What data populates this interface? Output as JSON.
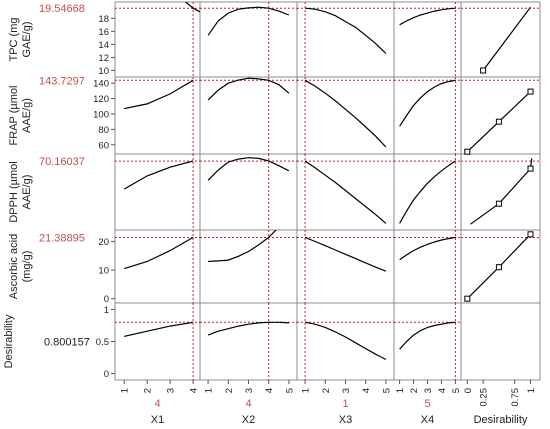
{
  "colors": {
    "curve": "#000000",
    "ref": "#c0272d",
    "frame": "#8c8c8c",
    "value_text": "#c0504d"
  },
  "chart_data": {
    "type": "line",
    "title": "",
    "rows": [
      {
        "name": "TPC (mg GAE/g)",
        "label_lines": [
          "TPC (mg",
          "GAE/g)"
        ],
        "current": "19.54668",
        "current_value": 19.54668,
        "ylim": [
          9,
          20.5
        ],
        "yticks": [
          "10",
          "12",
          "14",
          "16",
          "18"
        ],
        "ytick_values": [
          10,
          12,
          14,
          16,
          18
        ]
      },
      {
        "name": "FRAP (µmol AAE/g)",
        "label_lines": [
          "FRAP (µmol",
          "AAE/g)"
        ],
        "current": "143.7297",
        "current_value": 143.7297,
        "ylim": [
          48,
          148
        ],
        "yticks": [
          "60",
          "80",
          "100",
          "120",
          "140"
        ],
        "ytick_values": [
          60,
          80,
          100,
          120,
          140
        ]
      },
      {
        "name": "DPPH (µmol AAE/g)",
        "label_lines": [
          "DPPH (µmol",
          "AAE/g)"
        ],
        "current": "70.16037",
        "current_value": 70.16037,
        "ylim": [
          23,
          75
        ],
        "yticks": [],
        "ytick_values": []
      },
      {
        "name": "Ascorbic acid (mg/g)",
        "label_lines": [
          "Ascorbic acid",
          "(mg/g)"
        ],
        "current": "21.38895",
        "current_value": 21.38895,
        "ylim": [
          -1.5,
          24
        ],
        "yticks": [
          "0",
          "10",
          "20"
        ],
        "ytick_values": [
          0,
          10,
          20
        ]
      },
      {
        "name": "Desirability",
        "label_lines": [
          "Desirability"
        ],
        "current": "0.800157",
        "current_value": 0.800157,
        "ylim": [
          -0.1,
          1.1
        ],
        "yticks": [
          "0",
          "0.5",
          "1"
        ],
        "ytick_values": [
          0,
          0.5,
          1
        ]
      }
    ],
    "factors": [
      {
        "name": "X1",
        "current": "4",
        "current_value": 4,
        "xlim": [
          0.6,
          4.3
        ],
        "xticks": [
          "1",
          "2",
          "3",
          "4"
        ],
        "xtick_values": [
          1,
          2,
          3,
          4
        ]
      },
      {
        "name": "X2",
        "current": "4",
        "current_value": 4,
        "xlim": [
          0.6,
          5.4
        ],
        "xticks": [
          "1",
          "2",
          "3",
          "4",
          "5"
        ],
        "xtick_values": [
          1,
          2,
          3,
          4,
          5
        ]
      },
      {
        "name": "X3",
        "current": "1",
        "current_value": 1,
        "xlim": [
          0.6,
          5.4
        ],
        "xticks": [
          "1",
          "2",
          "3",
          "4",
          "5"
        ],
        "xtick_values": [
          1,
          2,
          3,
          4,
          5
        ]
      },
      {
        "name": "X4",
        "current": "5",
        "current_value": 5,
        "xlim": [
          0.6,
          5.4
        ],
        "xticks": [
          "1",
          "2",
          "3",
          "4",
          "5"
        ],
        "xtick_values": [
          1,
          2,
          3,
          4,
          5
        ]
      }
    ],
    "desirability_axis": {
      "name": "Desirability",
      "xlim": [
        -0.1,
        1.15
      ],
      "xticks": [
        "0",
        "0.25",
        "0.75",
        "1"
      ],
      "xtick_values": [
        0,
        0.25,
        0.75,
        1
      ]
    },
    "curves": [
      [
        {
          "x": [
            1,
            2,
            3,
            4,
            4.3
          ],
          "y": [
            27,
            25,
            22.5,
            19.55,
            19
          ]
        },
        {
          "x": [
            1,
            1.5,
            2,
            2.5,
            3,
            3.5,
            4,
            4.5,
            5
          ],
          "y": [
            15.4,
            17.6,
            18.8,
            19.4,
            19.6,
            19.7,
            19.55,
            19.1,
            18.5
          ]
        },
        {
          "x": [
            1,
            1.5,
            2,
            2.5,
            3,
            3.5,
            4,
            4.5,
            5
          ],
          "y": [
            19.55,
            19.4,
            19.0,
            18.4,
            17.5,
            16.6,
            15.4,
            14.1,
            12.6
          ]
        },
        {
          "x": [
            1,
            1.5,
            2,
            2.5,
            3,
            3.5,
            4,
            4.5,
            5
          ],
          "y": [
            17.0,
            17.6,
            18.1,
            18.5,
            18.8,
            19.1,
            19.3,
            19.45,
            19.55
          ]
        }
      ],
      [
        {
          "x": [
            1,
            2,
            3,
            4
          ],
          "y": [
            107,
            113,
            126,
            143.7
          ]
        },
        {
          "x": [
            1,
            1.5,
            2,
            2.5,
            3,
            3.5,
            4,
            4.5,
            5
          ],
          "y": [
            118,
            131,
            140,
            144,
            146.5,
            145.5,
            143.7,
            138,
            127
          ]
        },
        {
          "x": [
            1,
            1.5,
            2,
            2.5,
            3,
            3.5,
            4,
            4.5,
            5
          ],
          "y": [
            143.7,
            136,
            127,
            117,
            106,
            95,
            83,
            71,
            57
          ]
        },
        {
          "x": [
            1,
            1.5,
            2,
            2.5,
            3,
            3.5,
            4,
            4.5,
            5
          ],
          "y": [
            84,
            98,
            111,
            121,
            129,
            135,
            139.5,
            142,
            143.7
          ]
        }
      ],
      [
        {
          "x": [
            1,
            2,
            3,
            4
          ],
          "y": [
            51,
            60,
            66,
            70.2
          ]
        },
        {
          "x": [
            1,
            1.5,
            2,
            2.5,
            3,
            3.5,
            4,
            4.5,
            5
          ],
          "y": [
            57,
            64,
            69.5,
            71.5,
            72.5,
            72,
            70.2,
            67,
            63.5
          ]
        },
        {
          "x": [
            1,
            1.5,
            2,
            2.5,
            3,
            3.5,
            4,
            4.5,
            5
          ],
          "y": [
            70.2,
            65.5,
            60.5,
            55.5,
            50,
            44.5,
            39,
            33.5,
            27.5
          ]
        },
        {
          "x": [
            1,
            1.5,
            2,
            2.5,
            3,
            3.5,
            4,
            4.5,
            5
          ],
          "y": [
            27.5,
            36,
            43.5,
            49.5,
            55,
            59.5,
            63.5,
            67,
            70.2
          ]
        }
      ],
      [
        {
          "x": [
            1,
            2,
            3,
            4
          ],
          "y": [
            10.5,
            13,
            16.8,
            21.4
          ]
        },
        {
          "x": [
            1,
            1.5,
            2,
            2.5,
            3,
            3.5,
            4,
            4.5,
            5
          ],
          "y": [
            13,
            13.2,
            13.5,
            14.8,
            16.5,
            18.8,
            21.4,
            25,
            29
          ]
        },
        {
          "x": [
            1,
            1.5,
            2,
            2.5,
            3,
            3.5,
            4,
            4.5,
            5
          ],
          "y": [
            21.4,
            20.0,
            18.5,
            17.0,
            15.5,
            14.0,
            12.5,
            11.0,
            9.6
          ]
        },
        {
          "x": [
            1,
            1.5,
            2,
            2.5,
            3,
            3.5,
            4,
            4.5,
            5
          ],
          "y": [
            13.6,
            15.3,
            16.8,
            18.0,
            19.0,
            19.8,
            20.5,
            21.0,
            21.4
          ]
        }
      ],
      [
        {
          "x": [
            1,
            2,
            3,
            4
          ],
          "y": [
            0.58,
            0.66,
            0.74,
            0.8
          ]
        },
        {
          "x": [
            1,
            1.5,
            2,
            2.5,
            3,
            3.5,
            4,
            4.5,
            5
          ],
          "y": [
            0.6,
            0.66,
            0.7,
            0.74,
            0.77,
            0.79,
            0.8,
            0.8,
            0.79
          ]
        },
        {
          "x": [
            1,
            1.5,
            2,
            2.5,
            3,
            3.5,
            4,
            4.5,
            5
          ],
          "y": [
            0.8,
            0.77,
            0.72,
            0.65,
            0.57,
            0.48,
            0.39,
            0.3,
            0.22
          ]
        },
        {
          "x": [
            1,
            1.5,
            2,
            2.5,
            3,
            3.5,
            4,
            4.5,
            5
          ],
          "y": [
            0.38,
            0.5,
            0.6,
            0.67,
            0.72,
            0.75,
            0.77,
            0.79,
            0.8
          ]
        }
      ]
    ],
    "desirability_functions": [
      {
        "x": [
          0.25,
          1.0
        ],
        "y": [
          10,
          19.7
        ],
        "markers": [
          {
            "x": 0.25,
            "y": 10
          }
        ]
      },
      {
        "x": [
          0.0,
          0.5,
          1.0
        ],
        "y": [
          51,
          90,
          129
        ],
        "markers": [
          {
            "x": 0.0,
            "y": 51
          },
          {
            "x": 0.5,
            "y": 90
          },
          {
            "x": 1.0,
            "y": 129
          }
        ]
      },
      {
        "x": [
          0.05,
          0.5,
          1.0,
          1.02
        ],
        "y": [
          27,
          41,
          65,
          72
        ],
        "markers": [
          {
            "x": 0.5,
            "y": 41
          },
          {
            "x": 1.0,
            "y": 65
          }
        ]
      },
      {
        "x": [
          0.0,
          0.5,
          1.0
        ],
        "y": [
          0,
          11,
          22.5
        ],
        "markers": [
          {
            "x": 0.0,
            "y": 0
          },
          {
            "x": 0.5,
            "y": 11
          },
          {
            "x": 1.0,
            "y": 22.5
          }
        ]
      }
    ],
    "grid": false
  }
}
